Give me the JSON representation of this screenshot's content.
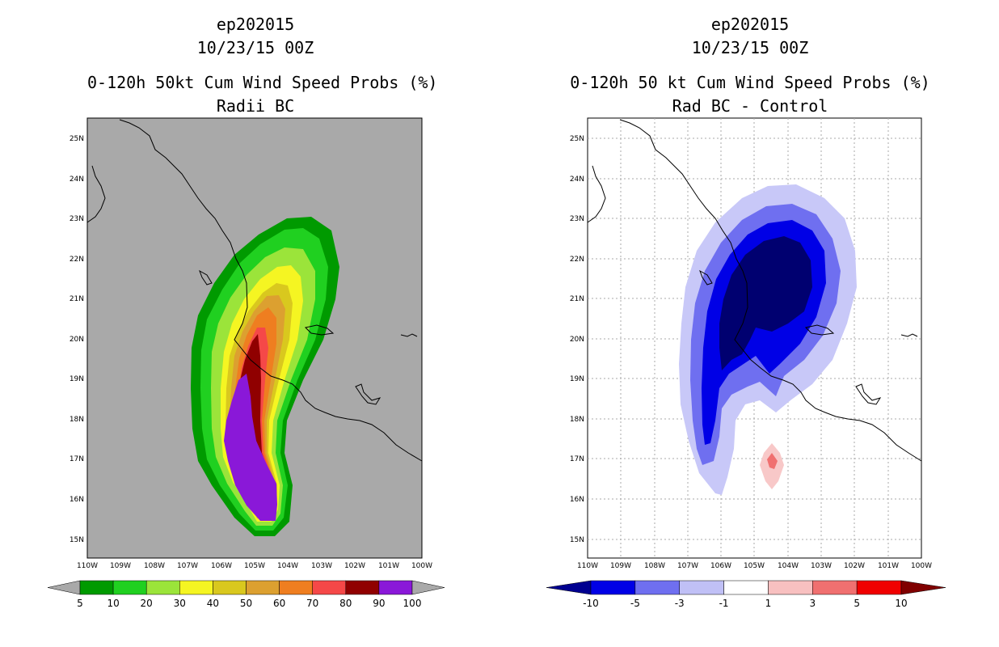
{
  "left_panel": {
    "title_lines": [
      "ep202015",
      "10/23/15 00Z",
      "0-120h 50kt Cum Wind Speed Probs (%)",
      "Radii BC"
    ],
    "background_color": "#a9a9a9",
    "lat_labels": [
      "15N",
      "16N",
      "17N",
      "18N",
      "19N",
      "20N",
      "21N",
      "22N",
      "23N",
      "24N",
      "25N"
    ],
    "lon_labels": [
      "110W",
      "109W",
      "108W",
      "107W",
      "106W",
      "105W",
      "104W",
      "103W",
      "102W",
      "101W",
      "100W"
    ],
    "colorbar": {
      "labels": [
        "5",
        "10",
        "20",
        "30",
        "40",
        "50",
        "60",
        "70",
        "80",
        "90",
        "100"
      ],
      "colors": [
        "#009a00",
        "#20d020",
        "#9be43a",
        "#f5f522",
        "#d9c81e",
        "#dca030",
        "#ef7e20",
        "#f54848",
        "#900000",
        "#8a18d8"
      ],
      "under_color": "#a9a9a9",
      "over_color": "#a9a9a9"
    }
  },
  "right_panel": {
    "title_lines": [
      "ep202015",
      "10/23/15 00Z",
      "0-120h 50 kt Cum Wind Speed Probs (%)",
      "Rad BC - Control"
    ],
    "background_color": "#ffffff",
    "lat_labels": [
      "15N",
      "16N",
      "17N",
      "18N",
      "19N",
      "20N",
      "21N",
      "22N",
      "23N",
      "24N",
      "25N"
    ],
    "lon_labels": [
      "110W",
      "109W",
      "108W",
      "107W",
      "106W",
      "105W",
      "104W",
      "103W",
      "102W",
      "101W",
      "100W"
    ],
    "colorbar": {
      "labels": [
        "-10",
        "-5",
        "-3",
        "-1",
        "1",
        "3",
        "5",
        "10"
      ],
      "colors": [
        "#0000e6",
        "#6f6ff0",
        "#c0c0f6",
        "#ffffff",
        "#f8c0c0",
        "#f07070",
        "#f00000"
      ],
      "under_color": "#000090",
      "over_color": "#800000"
    }
  }
}
